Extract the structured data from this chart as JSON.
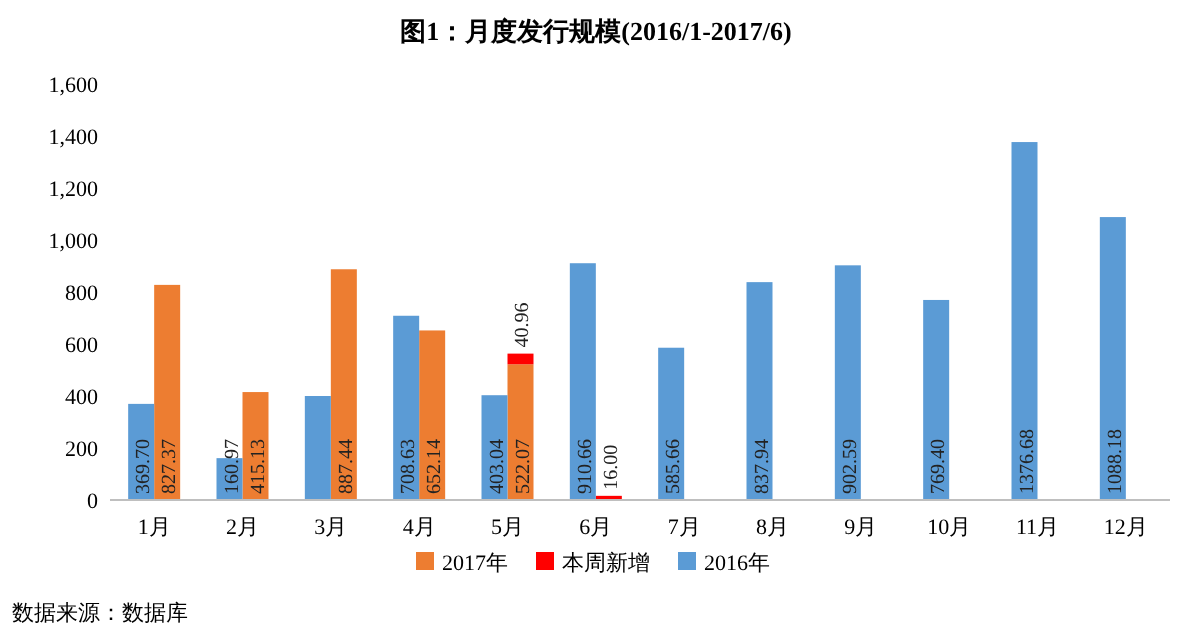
{
  "chart_data": {
    "type": "bar",
    "title": "图1：月度发行规模(2016/1-2017/6)",
    "categories": [
      "1月",
      "2月",
      "3月",
      "4月",
      "5月",
      "6月",
      "7月",
      "8月",
      "9月",
      "10月",
      "11月",
      "12月"
    ],
    "series": [
      {
        "name": "2017年",
        "color": "#ed7d31",
        "values": [
          827.37,
          415.13,
          887.44,
          652.14,
          522.07,
          null,
          null,
          null,
          null,
          null,
          null,
          null
        ],
        "value_labels": [
          "827.37",
          "415.13",
          "887.44",
          "652.14",
          "522.07",
          null,
          null,
          null,
          null,
          null,
          null,
          null
        ]
      },
      {
        "name": "本周新增",
        "color": "#ff0000",
        "base": [
          null,
          null,
          null,
          null,
          522.07,
          0,
          null,
          null,
          null,
          null,
          null,
          null
        ],
        "values": [
          null,
          null,
          null,
          null,
          40.96,
          16.0,
          null,
          null,
          null,
          null,
          null,
          null
        ],
        "value_labels": [
          null,
          null,
          null,
          null,
          "40.96",
          "16.00",
          null,
          null,
          null,
          null,
          null,
          null
        ]
      },
      {
        "name": "2016年",
        "color": "#5b9bd5",
        "values": [
          369.7,
          160.97,
          400,
          708.63,
          403.04,
          910.66,
          585.66,
          837.94,
          902.59,
          769.4,
          1376.68,
          1088.18
        ],
        "value_labels": [
          "369.70",
          "160.97",
          null,
          "708.63",
          "403.04",
          "910.66",
          "585.66",
          "837.94",
          "902.59",
          "769.40",
          "1376.68",
          "1088.18"
        ]
      }
    ],
    "ylim": [
      0,
      1600
    ],
    "yticks": [
      0,
      200,
      400,
      600,
      800,
      {
        "value": 1000,
        "label": "1,000"
      },
      {
        "value": 1200,
        "label": "1,200"
      },
      {
        "value": 1400,
        "label": "1,400"
      },
      {
        "value": 1600,
        "label": "1,600"
      }
    ],
    "legend": "bottom",
    "annotations": [
      "数据来源：数据库"
    ]
  }
}
